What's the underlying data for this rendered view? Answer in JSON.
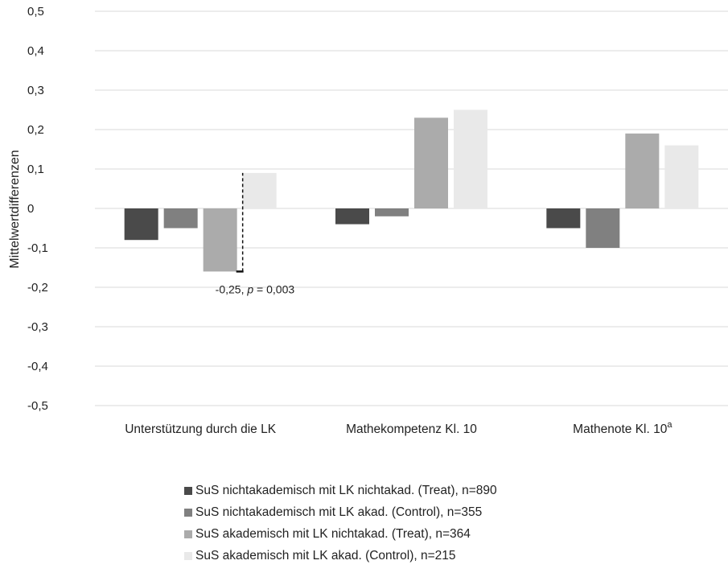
{
  "chart_data": {
    "type": "bar",
    "ylabel": "Mittelwertdifferenzen",
    "ylim": [
      -0.5,
      0.5
    ],
    "yticks": [
      0.5,
      0.4,
      0.3,
      0.2,
      0.1,
      0,
      -0.1,
      -0.2,
      -0.3,
      -0.4,
      -0.5
    ],
    "ytick_labels": [
      "0,5",
      "0,4",
      "0,3",
      "0,2",
      "0,1",
      "0",
      "-0,1",
      "-0,2",
      "-0,3",
      "-0,4",
      "-0,5"
    ],
    "grid": true,
    "categories": [
      "Unterstützung durch die LK",
      "Mathekompetenz Kl. 10",
      "Mathenote Kl. 10"
    ],
    "category_superscripts": [
      "",
      "",
      "a"
    ],
    "series": [
      {
        "name": "SuS nichtakademisch mit LK nichtakad. (Treat), n=890",
        "color": "#4a4a4a",
        "values": [
          -0.08,
          -0.04,
          -0.05
        ]
      },
      {
        "name": "SuS nichtakademisch mit LK akad. (Control), n=355",
        "color": "#808080",
        "values": [
          -0.05,
          -0.02,
          -0.1
        ]
      },
      {
        "name": "SuS akademisch mit LK nichtakad. (Treat), n=364",
        "color": "#ababab",
        "values": [
          -0.16,
          0.23,
          0.19
        ]
      },
      {
        "name": "SuS akademisch mit LK akad. (Control), n=215",
        "color": "#e9e9e9",
        "values": [
          0.09,
          0.25,
          0.16
        ]
      }
    ],
    "legend_position": "bottom",
    "annotation": {
      "category_index": 0,
      "text_before": "-0,25, ",
      "text_italic": "p",
      "text_after": " = 0,003",
      "from_value": -0.16,
      "to_value": 0.09
    }
  }
}
